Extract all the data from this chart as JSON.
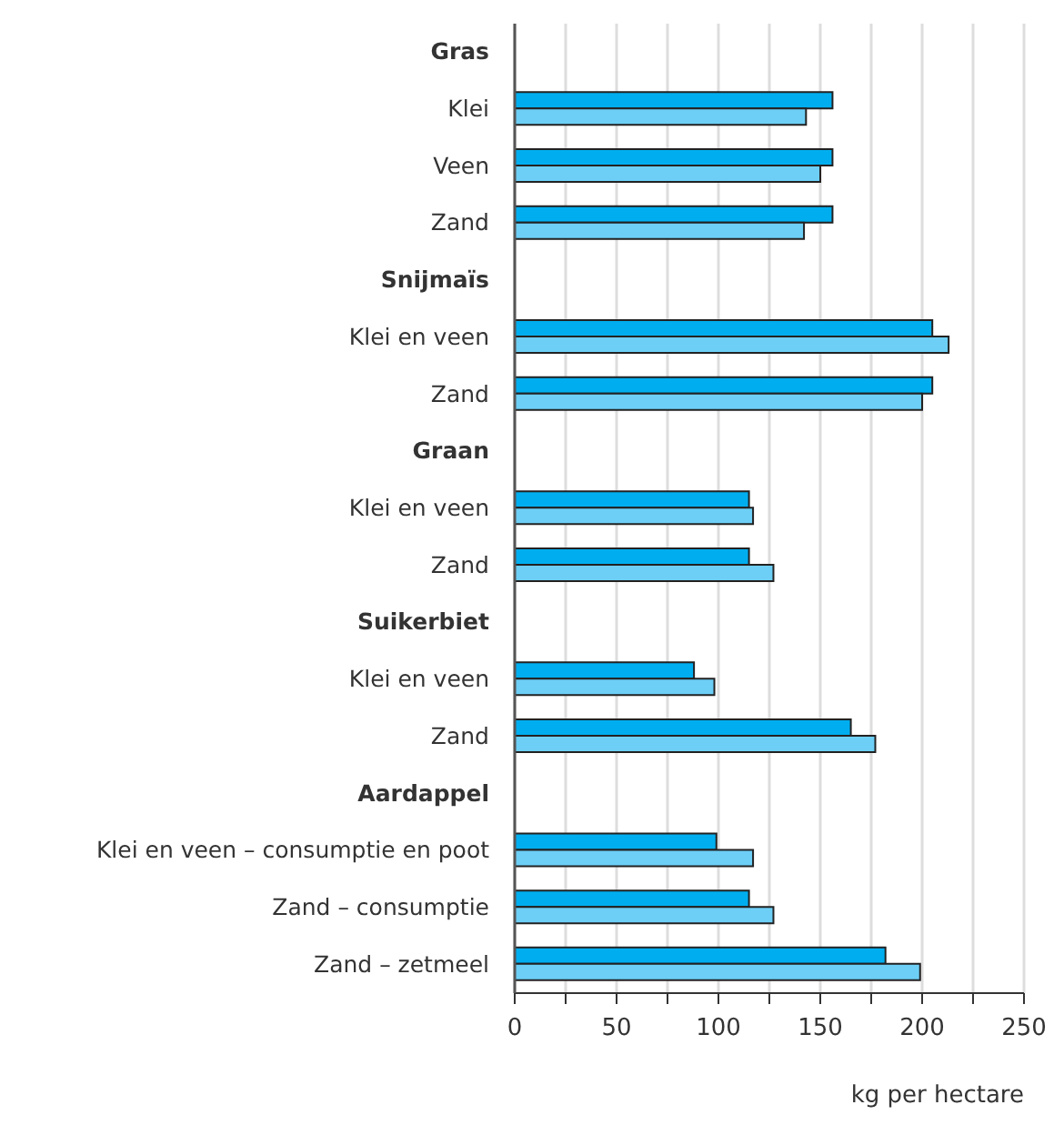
{
  "chart_data": {
    "type": "bar",
    "orientation": "horizontal",
    "xlabel": "kg per hectare",
    "categories": [
      "Gras",
      "Klei",
      "Veen",
      "Zand",
      "Snijmaïs",
      "Klei en veen",
      "Zand",
      "Graan",
      "Klei en veen",
      "Zand",
      "Suikerbiet",
      "Klei en veen",
      "Zand",
      "Aardappel",
      "Klei en veen – consumptie en poot",
      "Zand – consumptie",
      "Zand – zetmeel"
    ],
    "series": [
      {
        "color": "#00aeef",
        "values": [
          null,
          156,
          156,
          156,
          null,
          205,
          205,
          null,
          115,
          115,
          null,
          88,
          165,
          null,
          99,
          115,
          182
        ]
      },
      {
        "color": "#6dcff6",
        "values": [
          null,
          143,
          150,
          142,
          null,
          213,
          200,
          null,
          117,
          127,
          null,
          98,
          177,
          null,
          117,
          127,
          199
        ]
      }
    ],
    "xlim": [
      0,
      250
    ],
    "xticks": [
      0,
      {
        "value": 25,
        "label": null
      },
      50,
      {
        "value": 75,
        "label": null
      },
      100,
      {
        "value": 125,
        "label": null
      },
      150,
      {
        "value": 175,
        "label": null
      },
      200,
      {
        "value": 225,
        "label": null
      },
      250
    ],
    "grid": "x",
    "legend": false
  }
}
